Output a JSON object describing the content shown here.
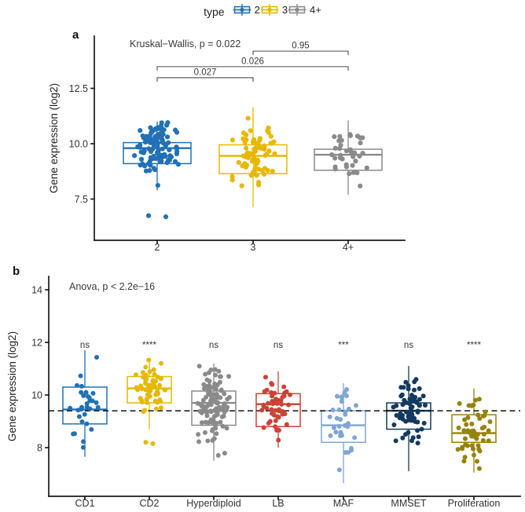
{
  "figure": {
    "background": "#ffffff"
  },
  "legend": {
    "title": "type",
    "items": [
      {
        "label": "2",
        "color": "#2171B5"
      },
      {
        "label": "3",
        "color": "#E7B800"
      },
      {
        "label": "4+",
        "color": "#8A8A8A"
      }
    ]
  },
  "chart_data": [
    {
      "id": "a",
      "panel_label": "a",
      "type": "boxplot-jitter",
      "stat_label": "Kruskal−Wallis, p = 0.022",
      "ylabel": "Gene expression (log2)",
      "yticks": [
        {
          "value": 7.5,
          "label": "7.5"
        },
        {
          "value": 10.0,
          "label": "10.0"
        },
        {
          "value": 12.5,
          "label": "12.5"
        }
      ],
      "ylim": [
        5.6,
        14.9
      ],
      "categories": [
        "2",
        "3",
        "4+"
      ],
      "series": [
        {
          "category": "2",
          "color": "#2171B5",
          "n": 110,
          "whisker_low": 7.9,
          "q1": 9.1,
          "median": 9.8,
          "q3": 10.05,
          "whisker_high": 11.0,
          "outliers": [
            6.75,
            6.7
          ]
        },
        {
          "category": "3",
          "color": "#E7B800",
          "n": 78,
          "whisker_low": 7.15,
          "q1": 8.65,
          "median": 9.45,
          "q3": 9.95,
          "whisker_high": 11.65,
          "outliers": []
        },
        {
          "category": "4+",
          "color": "#8A8A8A",
          "n": 36,
          "whisker_low": 7.7,
          "q1": 8.8,
          "median": 9.5,
          "q3": 9.75,
          "whisker_high": 11.05,
          "outliers": []
        }
      ],
      "comparisons": [
        {
          "group_a": "2",
          "group_b": "3",
          "label": "0.027",
          "y": 12.98
        },
        {
          "group_a": "2",
          "group_b": "4+",
          "label": "0.026",
          "y": 13.48
        },
        {
          "group_a": "3",
          "group_b": "4+",
          "label": "0.95",
          "y": 14.18
        }
      ]
    },
    {
      "id": "b",
      "panel_label": "b",
      "type": "boxplot-jitter",
      "stat_label": "Anova, p < 2.2e−16",
      "ylabel": "Gene expression (log2)",
      "yticks": [
        {
          "value": 8,
          "label": "8"
        },
        {
          "value": 10,
          "label": "10"
        },
        {
          "value": 12,
          "label": "12"
        },
        {
          "value": 14,
          "label": "14"
        }
      ],
      "ylim": [
        6.1,
        14.5
      ],
      "hline": 9.4,
      "categories": [
        "CD1",
        "CD2",
        "Hyperdiploid",
        "LB",
        "MAF",
        "MMSET",
        "Proliferation"
      ],
      "series": [
        {
          "category": "CD1",
          "color": "#2171B5",
          "n": 30,
          "whisker_low": 7.65,
          "q1": 8.9,
          "median": 9.45,
          "q3": 10.3,
          "whisker_high": 11.7,
          "outliers": [],
          "significance": "ns"
        },
        {
          "category": "CD2",
          "color": "#E7B800",
          "n": 55,
          "whisker_low": 8.7,
          "q1": 9.7,
          "median": 10.25,
          "q3": 10.7,
          "whisker_high": 11.4,
          "outliers": [
            8.2,
            8.15
          ],
          "significance": "****"
        },
        {
          "category": "Hyperdiploid",
          "color": "#8A8A8A",
          "n": 110,
          "whisker_low": 7.5,
          "q1": 8.85,
          "median": 9.7,
          "q3": 10.15,
          "whisker_high": 11.2,
          "outliers": [],
          "significance": "ns"
        },
        {
          "category": "LB",
          "color": "#CB4335",
          "n": 50,
          "whisker_low": 8.0,
          "q1": 8.8,
          "median": 9.65,
          "q3": 10.05,
          "whisker_high": 10.9,
          "outliers": [],
          "significance": "ns"
        },
        {
          "category": "MAF",
          "color": "#7EA6D4",
          "n": 34,
          "whisker_low": 6.65,
          "q1": 8.2,
          "median": 8.85,
          "q3": 9.4,
          "whisker_high": 10.45,
          "outliers": [],
          "significance": "***"
        },
        {
          "category": "MMSET",
          "color": "#123A5E",
          "n": 65,
          "whisker_low": 7.1,
          "q1": 8.7,
          "median": 9.4,
          "q3": 9.7,
          "whisker_high": 11.1,
          "outliers": [],
          "significance": "ns"
        },
        {
          "category": "Proliferation",
          "color": "#96820A",
          "n": 50,
          "whisker_low": 7.05,
          "q1": 8.2,
          "median": 8.55,
          "q3": 9.25,
          "whisker_high": 10.25,
          "outliers": [],
          "significance": "****"
        }
      ]
    }
  ]
}
